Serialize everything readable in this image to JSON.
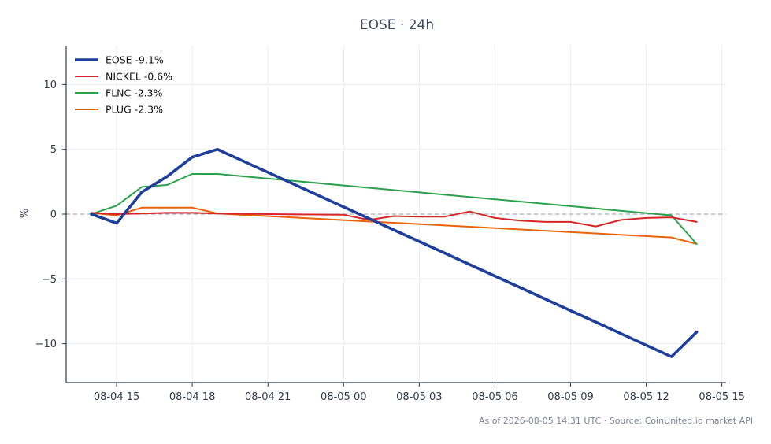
{
  "chart_data": {
    "type": "line",
    "title": "EOSE · 24h",
    "xlabel": "",
    "ylabel": "%",
    "xlim": [
      "2026-08-04 13:00",
      "2026-08-05 15:10"
    ],
    "ylim": [
      -13,
      13
    ],
    "y_ticks": [
      10,
      5,
      0,
      -5,
      -10
    ],
    "y_tick_labels": [
      "10",
      "5",
      "0",
      "−5",
      "−10"
    ],
    "x_ticks": [
      "2026-08-04 15:00",
      "2026-08-04 18:00",
      "2026-08-04 21:00",
      "2026-08-05 00:00",
      "2026-08-05 03:00",
      "2026-08-05 06:00",
      "2026-08-05 09:00",
      "2026-08-05 12:00",
      "2026-08-05 15:00"
    ],
    "x_tick_labels": [
      "08-04 15",
      "08-04 18",
      "08-04 21",
      "08-05 00",
      "08-05 03",
      "08-05 06",
      "08-05 09",
      "08-05 12",
      "08-05 15"
    ],
    "grid": true,
    "zero_line": true,
    "legend_position": "top-left",
    "series": [
      {
        "name": "EOSE -9.1%",
        "color": "#1f3f99",
        "x": [
          "2026-08-04 14:00",
          "2026-08-04 15:00",
          "2026-08-04 16:00",
          "2026-08-04 17:00",
          "2026-08-04 18:00",
          "2026-08-04 19:00",
          "2026-08-05 13:00",
          "2026-08-05 14:00"
        ],
        "y": [
          0.0,
          -0.7,
          1.7,
          2.9,
          4.4,
          5.0,
          -11.0,
          -9.1
        ]
      },
      {
        "name": "NICKEL -0.6%",
        "color": "#d62728",
        "x": [
          "2026-08-04 14:00",
          "2026-08-04 15:00",
          "2026-08-04 16:00",
          "2026-08-04 17:00",
          "2026-08-04 18:00",
          "2026-08-04 19:00",
          "2026-08-04 21:00",
          "2026-08-05 00:00",
          "2026-08-05 01:00",
          "2026-08-05 02:00",
          "2026-08-05 03:00",
          "2026-08-05 04:00",
          "2026-08-05 05:00",
          "2026-08-05 06:00",
          "2026-08-05 07:00",
          "2026-08-05 08:00",
          "2026-08-05 09:00",
          "2026-08-05 10:00",
          "2026-08-05 11:00",
          "2026-08-05 12:00",
          "2026-08-05 13:00",
          "2026-08-05 14:00"
        ],
        "y": [
          0.1,
          0.0,
          0.05,
          0.1,
          0.1,
          0.05,
          0.0,
          -0.05,
          -0.45,
          -0.15,
          -0.2,
          -0.2,
          0.2,
          -0.3,
          -0.5,
          -0.6,
          -0.6,
          -0.95,
          -0.45,
          -0.3,
          -0.25,
          -0.6
        ]
      },
      {
        "name": "FLNC -2.3%",
        "color": "#2ca04c",
        "x": [
          "2026-08-04 14:00",
          "2026-08-04 15:00",
          "2026-08-04 16:00",
          "2026-08-04 17:00",
          "2026-08-04 18:00",
          "2026-08-04 19:00",
          "2026-08-05 13:00",
          "2026-08-05 14:00"
        ],
        "y": [
          0.0,
          0.65,
          2.1,
          2.25,
          3.1,
          3.1,
          -0.1,
          -2.3
        ]
      },
      {
        "name": "PLUG -2.3%",
        "color": "#e8630a",
        "x": [
          "2026-08-04 14:00",
          "2026-08-04 15:00",
          "2026-08-04 16:00",
          "2026-08-04 17:00",
          "2026-08-04 18:00",
          "2026-08-04 19:00",
          "2026-08-05 13:00",
          "2026-08-05 14:00"
        ],
        "y": [
          0.1,
          -0.1,
          0.5,
          0.5,
          0.5,
          0.05,
          -1.8,
          -2.3
        ]
      }
    ]
  },
  "footer": "As of 2026-08-05 14:31 UTC · Source: CoinUnited.io market API"
}
